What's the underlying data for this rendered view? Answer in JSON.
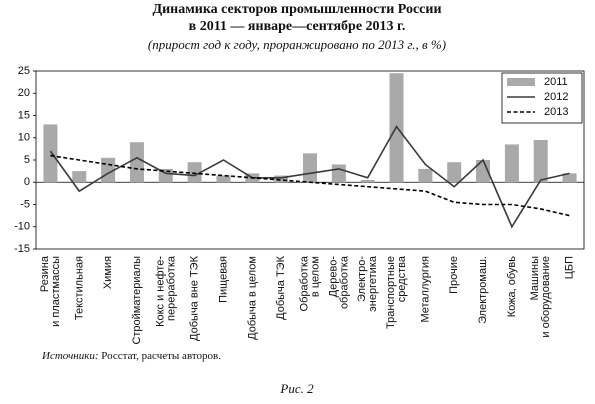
{
  "chart_data": {
    "type": "bar_line",
    "title": [
      "Динамика секторов промышленности России",
      "в 2011 — январе—сентябре 2013 г."
    ],
    "subtitle": "(прирост год к году, проранжировано по 2013 г., в %)",
    "categories": [
      "Резина\nи пластмассы",
      "Текстильная",
      "Химия",
      "Стройматериалы",
      "Кокс и нефте-\nпереработка",
      "Добыча вне ТЭК",
      "Пищевая",
      "Добыча в целом",
      "Добыча ТЭК",
      "Обработка\nв целом",
      "Дерево-\nобработка",
      "Электро-\nэнергетика",
      "Транспортные\nсредства",
      "Металлургия",
      "Прочие",
      "Электромаш.",
      "Кожа, обувь",
      "Машины\nи оборудование",
      "ЦБП"
    ],
    "series": [
      {
        "name": "2011",
        "kind": "bar",
        "color": "#a9a9a9",
        "values": [
          13,
          2.5,
          5.5,
          9,
          3,
          4.5,
          1.5,
          2,
          1.5,
          6.5,
          4,
          0.5,
          24.5,
          3,
          4.5,
          5,
          8.5,
          9.5,
          2
        ]
      },
      {
        "name": "2012",
        "kind": "line",
        "color": "#3a3a3a",
        "dash": false,
        "values": [
          7,
          -2,
          2,
          5.5,
          2,
          1.5,
          5,
          1,
          1,
          2,
          3,
          1,
          12.5,
          4,
          -1,
          5,
          -10,
          0.5,
          2
        ]
      },
      {
        "name": "2013",
        "kind": "line",
        "color": "#000000",
        "dash": true,
        "values": [
          6,
          5,
          4,
          3,
          2.5,
          2,
          1.5,
          1,
          0.5,
          0,
          -0.5,
          -1,
          -1.5,
          -2,
          -4.5,
          -5,
          -5,
          -6,
          -7.5
        ]
      }
    ],
    "ylim": [
      -15,
      25
    ],
    "yticks": [
      -15,
      -10,
      -5,
      0,
      5,
      10,
      15,
      20,
      25
    ],
    "legend": "top-right",
    "source": {
      "label": "Источники:",
      "text": "Росстат, расчеты авторов."
    },
    "caption": "Рис. 2"
  }
}
